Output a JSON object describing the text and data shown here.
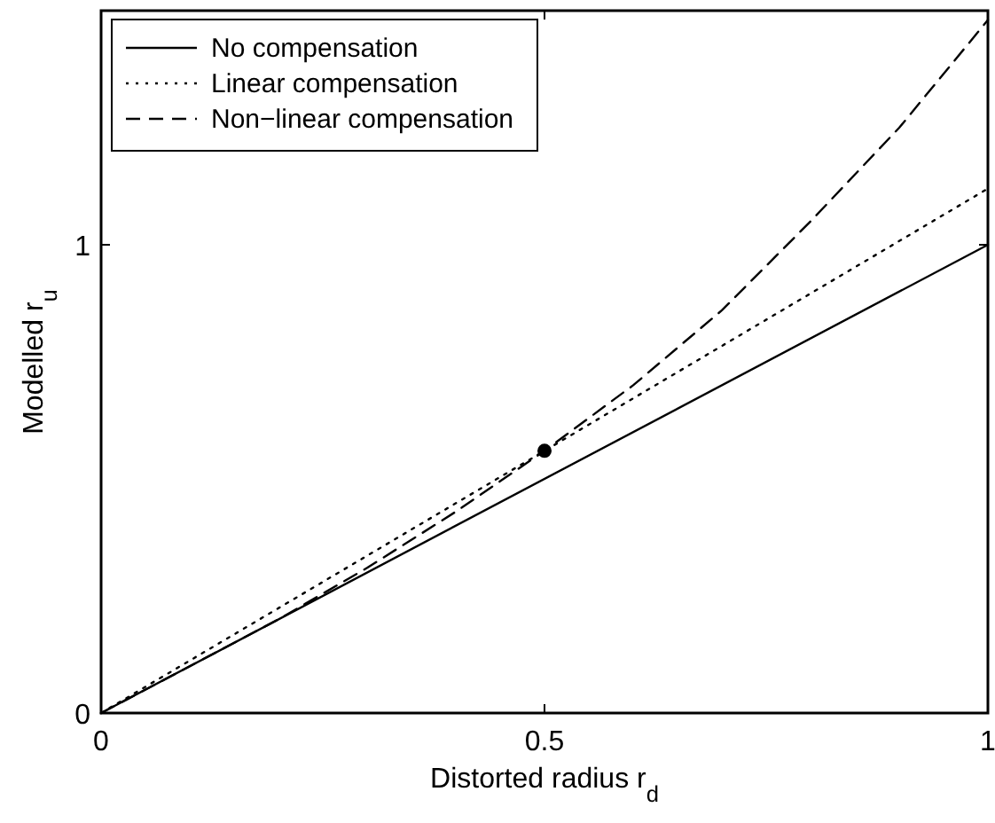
{
  "chart_data": {
    "type": "line",
    "xlabel": "Distorted radius r$_{d}$",
    "ylabel": "Modelled r$_{u}$",
    "xlim": [
      0,
      1
    ],
    "ylim": [
      0,
      1.5
    ],
    "xticks": [
      0,
      0.5,
      1
    ],
    "yticks": [
      0,
      1
    ],
    "grid": false,
    "legend": "top left",
    "series": [
      {
        "name": "No compensation",
        "color": "#000000",
        "line_style": "solid",
        "x": [
          0,
          1
        ],
        "values": [
          0,
          1
        ]
      },
      {
        "name": "Linear compensation",
        "color": "#000000",
        "line_style": "dotted",
        "x": [
          0,
          1
        ],
        "values": [
          0,
          1.12
        ]
      },
      {
        "name": "Non−linear compensation",
        "color": "#000000",
        "line_style": "dashed",
        "x": [
          0,
          0.1,
          0.2,
          0.3,
          0.4,
          0.5,
          0.6,
          0.7,
          0.8,
          0.9,
          1
        ],
        "values": [
          0,
          0.1,
          0.2,
          0.31,
          0.43,
          0.56,
          0.7,
          0.86,
          1.05,
          1.25,
          1.48
        ]
      },
      {
        "type": "scatter",
        "color": "#000000",
        "marker": "circle",
        "x": [
          0.5
        ],
        "values": [
          0.56
        ]
      }
    ]
  }
}
